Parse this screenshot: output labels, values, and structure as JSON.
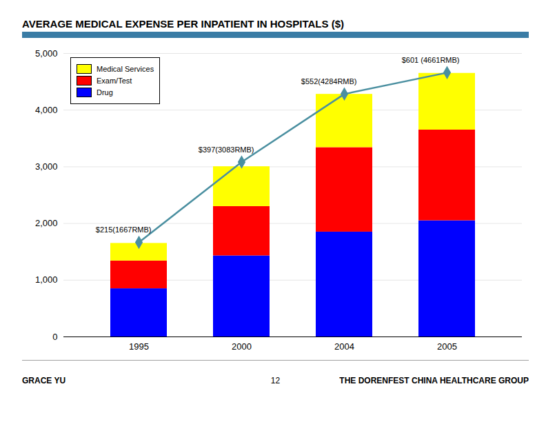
{
  "chart_data": {
    "type": "bar",
    "title": "AVERAGE MEDICAL EXPENSE PER INPATIENT IN HOSPITALS ($)",
    "categories": [
      "1995",
      "2000",
      "2004",
      "2005"
    ],
    "stacked": true,
    "series": [
      {
        "name": "Drug",
        "color": "#0000FF",
        "values": [
          850,
          1430,
          1850,
          2050
        ]
      },
      {
        "name": "Exam/Test",
        "color": "#FF0000",
        "values": [
          490,
          870,
          1490,
          1600
        ]
      },
      {
        "name": "Medical Services",
        "color": "#FFFF00",
        "values": [
          310,
          703,
          940,
          1000
        ]
      },
      {
        "type": "line",
        "color": "#4A8FA0",
        "marker": "diamond",
        "line_style": "solid",
        "values": [
          1667,
          3083,
          4284,
          4661
        ],
        "data_labels": true,
        "value_labels": [
          "$215(1667RMB)",
          "$397(3083RMB)",
          "$552(4284RMB)",
          "$601 (4661RMB)"
        ]
      }
    ],
    "ylim": [
      0,
      5000
    ],
    "yticks": [
      0,
      1000,
      2000,
      3000,
      4000,
      5000
    ],
    "grid": true,
    "legend": "upper left",
    "footer_left": "GRACE YU",
    "footer_center": "12",
    "footer_right": "THE DORENFEST CHINA HEALTHCARE GROUP"
  }
}
